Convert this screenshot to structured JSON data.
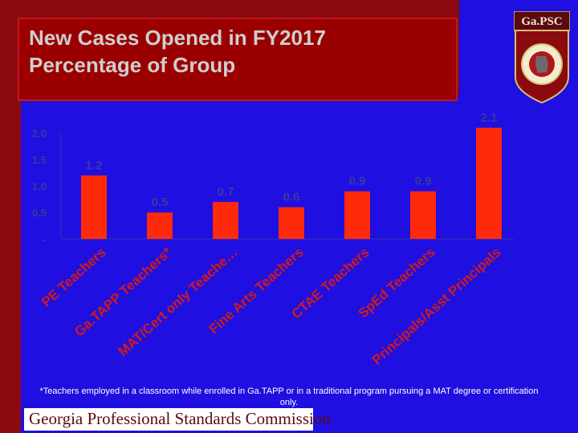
{
  "title": "New Cases Opened in FY2017\nPercentage of Group",
  "logo": {
    "text": "Ga.PSC",
    "icon": "gapsc-shield-seal-icon"
  },
  "colors": {
    "bar": "#ff2a0a",
    "background": "#1f0fe0",
    "banner": "#8a0a10",
    "tick": "#3a3aa0",
    "category": "#d21a1a"
  },
  "chart_data": {
    "type": "bar",
    "categories": [
      "PE Teachers",
      "Ga.TAPP Teachers*",
      "MAT/Cert only Teache…",
      "Fine Arts Teachers",
      "CTAE Teachers",
      "SpEd Teachers",
      "Principals/Asst Principals"
    ],
    "values": [
      1.2,
      0.5,
      0.7,
      0.6,
      0.9,
      0.9,
      2.1
    ],
    "data_labels": [
      "1.2",
      "0.5",
      "0.7",
      "0.6",
      "0.9",
      "0.9",
      "2.1"
    ],
    "yticks": [
      0,
      0.5,
      1.0,
      1.5,
      2.0
    ],
    "ytick_labels": [
      "-",
      "0.5",
      "1.0",
      "1.5",
      "2.0"
    ],
    "ylim": [
      0,
      2.0
    ],
    "grid": false,
    "legend": false
  },
  "footnote": "*Teachers employed in a classroom while enrolled in Ga.TAPP or in a traditional program pursuing a MAT degree or certification only.",
  "footer": "Georgia Professional Standards Commission"
}
